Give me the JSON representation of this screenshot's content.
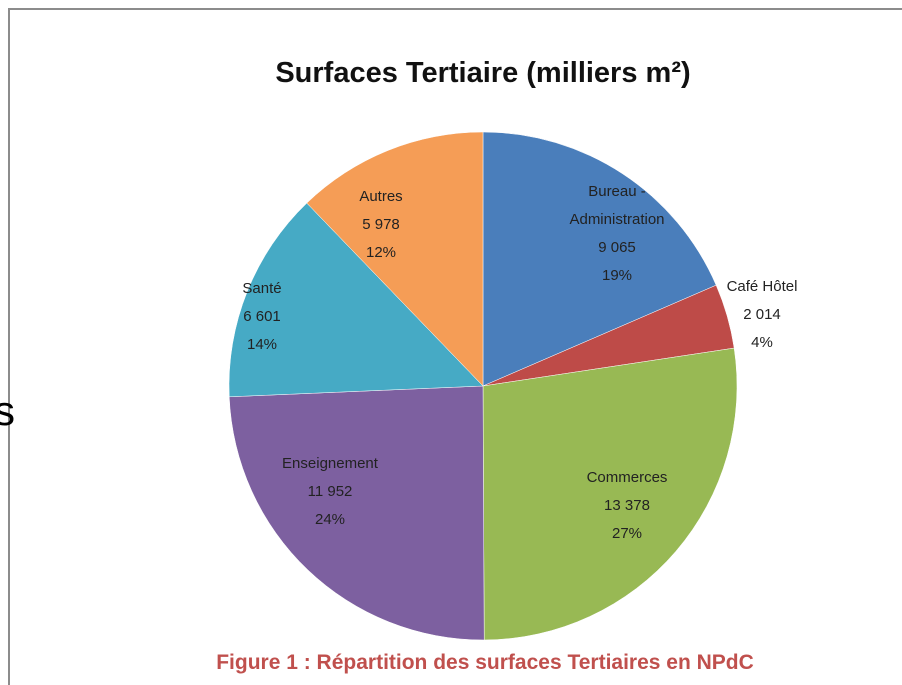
{
  "chart_data": {
    "type": "pie",
    "title": "Surfaces Tertiaire (milliers m²)",
    "caption": "Figure 1 : Répartition des surfaces Tertiaires en NPdC",
    "side_text": "s",
    "categories": [
      "Bureau - Administration",
      "Café Hôtel",
      "Commerces",
      "Enseignement",
      "Santé",
      "Autres"
    ],
    "values": [
      9065,
      2014,
      13378,
      11952,
      6601,
      5978
    ],
    "value_labels": [
      "9 065",
      "2 014",
      "13 378",
      "11 952",
      "6 601",
      "5 978"
    ],
    "percents": [
      19,
      4,
      27,
      24,
      14,
      12
    ],
    "percent_labels": [
      "19%",
      "4%",
      "27%",
      "24%",
      "14%",
      "12%"
    ],
    "colors": [
      "#4a7ebb",
      "#be4b48",
      "#98b954",
      "#7d60a0",
      "#46aac5",
      "#f59d56"
    ]
  }
}
